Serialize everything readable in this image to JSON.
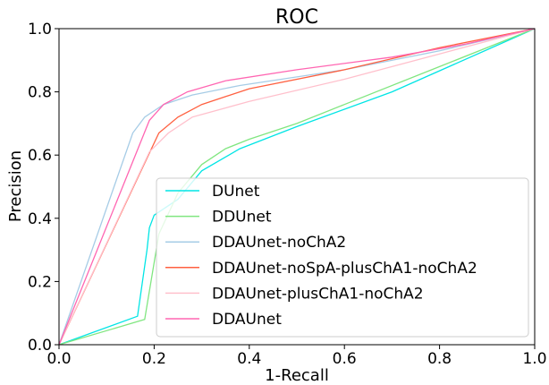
{
  "chart_data": {
    "type": "line",
    "title": "ROC",
    "xlabel": "1-Recall",
    "ylabel": "Precision",
    "xlim": [
      0.0,
      1.0
    ],
    "ylim": [
      0.0,
      1.0
    ],
    "xticks": [
      "0.0",
      "0.2",
      "0.4",
      "0.6",
      "0.8",
      "1.0"
    ],
    "yticks": [
      "0.0",
      "0.2",
      "0.4",
      "0.6",
      "0.8",
      "1.0"
    ],
    "grid": false,
    "legend_position": "lower-right",
    "series": [
      {
        "name": "DUnet",
        "color": "#00e5e5",
        "x": [
          0.0,
          0.165,
          0.185,
          0.19,
          0.2,
          0.25,
          0.3,
          0.38,
          0.5,
          0.7,
          1.0
        ],
        "y": [
          0.0,
          0.09,
          0.3,
          0.37,
          0.41,
          0.46,
          0.55,
          0.62,
          0.69,
          0.8,
          1.0
        ]
      },
      {
        "name": "DDUnet",
        "color": "#80e680",
        "x": [
          0.0,
          0.18,
          0.21,
          0.25,
          0.3,
          0.35,
          0.4,
          0.5,
          0.6,
          0.8,
          1.0
        ],
        "y": [
          0.0,
          0.08,
          0.35,
          0.48,
          0.57,
          0.62,
          0.65,
          0.7,
          0.76,
          0.88,
          1.0
        ]
      },
      {
        "name": "DDAUnet-noChA2",
        "color": "#a6cce6",
        "x": [
          0.0,
          0.155,
          0.18,
          0.22,
          0.28,
          0.38,
          0.6,
          0.8,
          1.0
        ],
        "y": [
          0.0,
          0.67,
          0.72,
          0.76,
          0.79,
          0.82,
          0.87,
          0.93,
          1.0
        ]
      },
      {
        "name": "DDAUnet-noSpA-plusChA1-noChA2",
        "color": "#ff6040",
        "x": [
          0.0,
          0.21,
          0.25,
          0.3,
          0.4,
          0.6,
          0.8,
          1.0
        ],
        "y": [
          0.0,
          0.67,
          0.72,
          0.76,
          0.81,
          0.87,
          0.94,
          1.0
        ]
      },
      {
        "name": "DDAUnet-plusChA1-noChA2",
        "color": "#ffc0cc",
        "x": [
          0.0,
          0.19,
          0.23,
          0.28,
          0.4,
          0.6,
          0.8,
          1.0
        ],
        "y": [
          0.0,
          0.61,
          0.67,
          0.72,
          0.77,
          0.84,
          0.92,
          1.0
        ]
      },
      {
        "name": "DDAUnet",
        "color": "#ff66b2",
        "x": [
          0.0,
          0.19,
          0.22,
          0.27,
          0.35,
          0.5,
          0.7,
          0.85,
          1.0
        ],
        "y": [
          0.0,
          0.71,
          0.76,
          0.8,
          0.835,
          0.87,
          0.91,
          0.95,
          1.0
        ]
      }
    ]
  }
}
